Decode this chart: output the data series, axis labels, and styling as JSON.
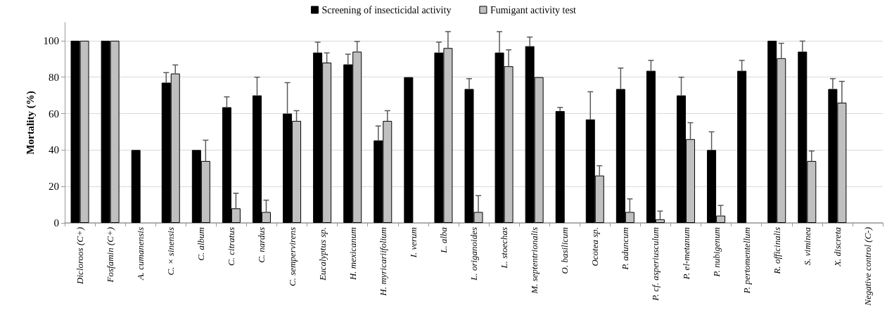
{
  "chart_data": {
    "type": "bar",
    "ylabel": "Mortality (%)",
    "categories": [
      "Dicloroos (C+)",
      "Fosfamin (C+)",
      "A. cumanensis",
      "C. × sinensis",
      "C. album",
      "C. citratus",
      "C. nardus",
      "C. sempervirens",
      "Eucalyptus sp.",
      "H. mexicanum",
      "H. myricariifolium",
      "I. verum",
      "L. alba",
      "L. origanoides",
      "L. stoechas",
      "M. septentrionalis",
      "O. basilicum",
      "Ocotea sp.",
      "P. aduncum",
      "P. cf. asperiusculum",
      "P. el-metanum",
      "P. nubigenum",
      "P. pertomentellum",
      "R. officinalis",
      "S. viminea",
      "X. discreta",
      "Negative control (C-)"
    ],
    "series": [
      {
        "name": "Screening of insecticidal activity",
        "color": "#000000",
        "values": [
          100,
          100,
          40,
          77,
          40,
          63.5,
          70,
          60,
          93.5,
          87,
          45.3,
          80,
          93.5,
          73.5,
          93.5,
          97,
          61.4,
          56.8,
          73.5,
          83.5,
          70,
          40,
          83.5,
          100,
          94,
          73.5,
          0
        ],
        "errors": [
          null,
          null,
          null,
          [
            77,
            82.5
          ],
          null,
          [
            63.5,
            69.2
          ],
          [
            70,
            80
          ],
          [
            60,
            77
          ],
          [
            93.5,
            99.2
          ],
          [
            87,
            92.6
          ],
          [
            45.3,
            53.2
          ],
          null,
          [
            93.5,
            99.2
          ],
          [
            73.5,
            79.2
          ],
          [
            93.5,
            105
          ],
          [
            97,
            102
          ],
          [
            61.4,
            63.4
          ],
          [
            56.8,
            72
          ],
          [
            73.5,
            85
          ],
          [
            83.5,
            89.2
          ],
          [
            70,
            80
          ],
          [
            40,
            50
          ],
          [
            83.5,
            89.2
          ],
          null,
          [
            94,
            99.8
          ],
          [
            73.5,
            79.2
          ],
          null
        ]
      },
      {
        "name": "Fumigant activity test",
        "color": "#c0c0c0",
        "values": [
          100,
          100,
          0,
          82,
          34,
          8,
          6,
          56,
          88,
          94,
          56,
          0,
          96,
          6,
          86,
          80,
          0,
          26,
          6,
          2,
          46,
          4,
          0,
          90.4,
          34,
          66,
          0
        ],
        "errors": [
          null,
          null,
          null,
          [
            82,
            86.7
          ],
          [
            34,
            45.4
          ],
          [
            8,
            16.3
          ],
          [
            6,
            12.5
          ],
          [
            56,
            61.6
          ],
          [
            88,
            93.3
          ],
          [
            94,
            99.6
          ],
          [
            56,
            61.6
          ],
          null,
          [
            96,
            105
          ],
          [
            6,
            15
          ],
          [
            86,
            95
          ],
          null,
          null,
          [
            26,
            31.4
          ],
          [
            6,
            13.2
          ],
          [
            2,
            6.5
          ],
          [
            46,
            55
          ],
          [
            4,
            9.6
          ],
          null,
          [
            90.4,
            98.6
          ],
          [
            34,
            39.5
          ],
          [
            66,
            77.7
          ],
          null
        ]
      }
    ],
    "ylim": [
      0,
      110
    ],
    "yticks": [
      0,
      20,
      40,
      60,
      80,
      100
    ],
    "grid": "y",
    "legend": "top"
  }
}
